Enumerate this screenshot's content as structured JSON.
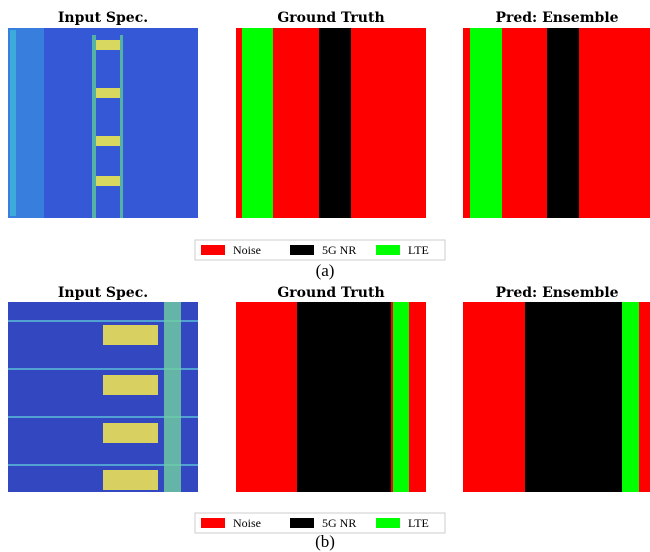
{
  "figures": [
    {
      "panels": [
        {
          "title": "Input Spec."
        },
        {
          "title": "Ground Truth"
        },
        {
          "title": "Pred: Ensemble"
        }
      ],
      "legend": [
        "Noise",
        "5G NR",
        "LTE"
      ],
      "caption": "(a)"
    },
    {
      "panels": [
        {
          "title": "Input Spec."
        },
        {
          "title": "Ground Truth"
        },
        {
          "title": "Pred: Ensemble"
        }
      ],
      "legend": [
        "Noise",
        "5G NR",
        "LTE"
      ],
      "caption": "(b)"
    }
  ]
}
